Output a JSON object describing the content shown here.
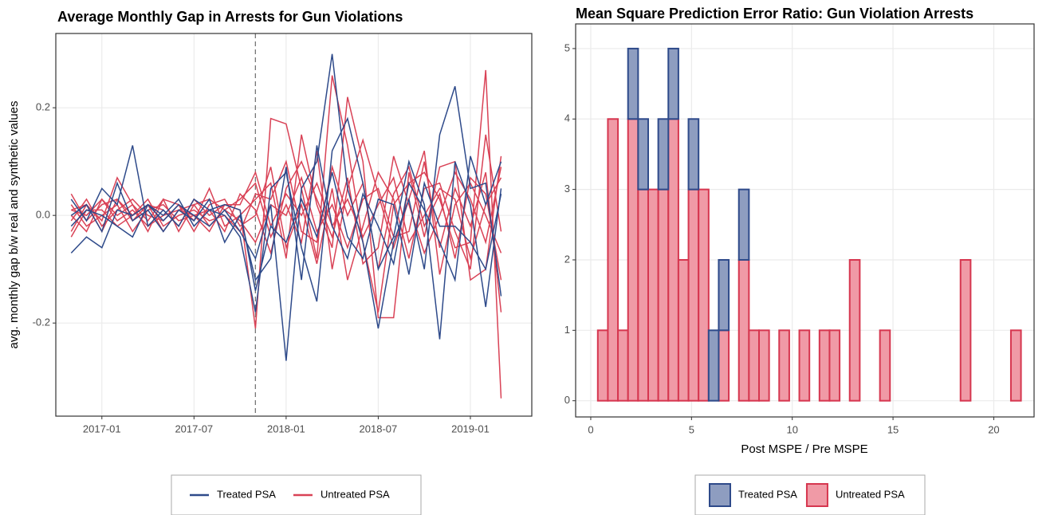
{
  "chart_data": [
    {
      "type": "line",
      "title": "Average Monthly Gap in Arrests for Gun Violations",
      "y_label": "avg. monthly gap b/w real and synthetic values",
      "x": [
        "2016-11",
        "2016-12",
        "2017-01",
        "2017-02",
        "2017-03",
        "2017-04",
        "2017-05",
        "2017-06",
        "2017-07",
        "2017-08",
        "2017-09",
        "2017-10",
        "2017-11",
        "2017-12",
        "2018-01",
        "2018-02",
        "2018-03",
        "2018-04",
        "2018-05",
        "2018-06",
        "2018-07",
        "2018-08",
        "2018-09",
        "2018-10",
        "2018-11",
        "2018-12",
        "2019-01",
        "2019-02",
        "2019-03"
      ],
      "xlim": [
        "2016-10",
        "2019-05"
      ],
      "xticks": [
        "2017-01",
        "2017-07",
        "2018-01",
        "2018-07",
        "2019-01"
      ],
      "ylim": [
        -0.373,
        0.338
      ],
      "yticks": [
        -0.2,
        {
          "value": 0,
          "label": "0.0"
        },
        0.2
      ],
      "vline": "2017-11",
      "grid": true,
      "legend": "bottom",
      "series": [
        {
          "name": "Treated PSA",
          "color": "#2e4a8a",
          "values": [
            [
              -0.07,
              -0.04,
              -0.06,
              0.01,
              0.0,
              0.02,
              -0.01,
              0.02,
              0.0,
              -0.02,
              0.01,
              -0.03,
              -0.08,
              0.02,
              -0.27,
              0.05,
              0.1,
              0.3,
              0.05,
              -0.05,
              -0.21,
              -0.05,
              0.03,
              -0.1,
              0.15,
              0.24,
              0.05,
              0.06,
              -0.15
            ],
            [
              0.03,
              -0.01,
              0.05,
              0.02,
              0.13,
              -0.02,
              0.01,
              -0.02,
              0.03,
              0.01,
              0.0,
              -0.04,
              -0.18,
              0.05,
              0.08,
              -0.06,
              -0.16,
              0.12,
              0.18,
              0.06,
              -0.1,
              -0.04,
              0.1,
              0.02,
              -0.23,
              0.1,
              0.02,
              -0.17,
              0.05
            ],
            [
              0.0,
              0.02,
              -0.03,
              0.06,
              -0.01,
              0.01,
              -0.03,
              0.01,
              -0.01,
              0.03,
              -0.05,
              0.0,
              -0.12,
              -0.08,
              0.09,
              -0.12,
              0.13,
              -0.02,
              -0.08,
              0.04,
              -0.02,
              -0.09,
              0.06,
              0.01,
              -0.05,
              -0.12,
              0.11,
              0.02,
              0.1
            ],
            [
              -0.02,
              0.01,
              0.0,
              -0.02,
              -0.04,
              0.02,
              0.0,
              0.03,
              -0.02,
              0.01,
              0.02,
              0.01,
              -0.14,
              -0.02,
              -0.05,
              0.03,
              -0.04,
              0.08,
              -0.04,
              -0.08,
              0.03,
              0.02,
              -0.11,
              0.06,
              -0.02,
              -0.02,
              -0.05,
              -0.1,
              0.04
            ]
          ]
        },
        {
          "name": "Untreated PSA",
          "color": "#d94256",
          "values": [
            [
              0.04,
              -0.01,
              0.02,
              0.03,
              -0.01,
              0.02,
              0.01,
              -0.02,
              0.03,
              0.0,
              0.02,
              0.01,
              -0.21,
              0.18,
              0.17,
              0.05,
              -0.08,
              0.26,
              0.13,
              -0.05,
              -0.18,
              0.02,
              0.06,
              0.08,
              0.03,
              -0.06,
              -0.05,
              0.27,
              -0.34
            ],
            [
              -0.03,
              0.02,
              -0.01,
              0.07,
              0.02,
              -0.03,
              0.03,
              0.02,
              -0.01,
              0.05,
              -0.02,
              0.0,
              0.03,
              0.06,
              -0.08,
              0.15,
              0.02,
              -0.06,
              0.22,
              0.1,
              -0.19,
              -0.19,
              0.08,
              -0.04,
              0.09,
              0.1,
              -0.12,
              -0.1,
              0.11
            ],
            [
              0.01,
              0.0,
              0.03,
              -0.01,
              0.01,
              -0.02,
              0.0,
              0.01,
              0.02,
              -0.02,
              0.01,
              0.03,
              0.06,
              -0.04,
              0.02,
              -0.05,
              0.12,
              -0.1,
              0.05,
              0.14,
              0.04,
              -0.06,
              0.03,
              0.12,
              -0.11,
              0.02,
              0.06,
              0.0,
              -0.07
            ],
            [
              -0.01,
              0.03,
              -0.02,
              0.01,
              0.03,
              0.0,
              -0.01,
              0.02,
              -0.03,
              0.02,
              0.03,
              -0.02,
              0.0,
              0.09,
              -0.06,
              0.02,
              -0.09,
              0.05,
              -0.12,
              -0.02,
              0.08,
              0.03,
              -0.08,
              0.05,
              0.06,
              -0.03,
              -0.1,
              0.15,
              -0.03
            ],
            [
              0.02,
              -0.02,
              0.0,
              0.02,
              -0.03,
              0.01,
              0.02,
              -0.01,
              0.0,
              0.01,
              -0.03,
              0.04,
              0.01,
              -0.07,
              0.05,
              0.1,
              0.03,
              -0.04,
              0.07,
              -0.09,
              -0.06,
              0.11,
              0.02,
              -0.07,
              0.0,
              0.08,
              0.03,
              -0.05,
              0.09
            ],
            [
              -0.04,
              0.01,
              0.01,
              -0.02,
              0.0,
              0.03,
              -0.02,
              0.0,
              0.01,
              -0.01,
              0.0,
              -0.03,
              0.04,
              0.03,
              0.1,
              -0.03,
              -0.05,
              0.09,
              0.0,
              0.06,
              -0.1,
              0.04,
              0.09,
              -0.02,
              0.04,
              -0.08,
              0.07,
              0.04,
              -0.12
            ],
            [
              0.0,
              -0.03,
              0.03,
              0.0,
              0.02,
              -0.01,
              0.03,
              -0.03,
              0.02,
              0.03,
              0.01,
              -0.01,
              -0.05,
              0.02,
              0.0,
              0.07,
              -0.03,
              0.02,
              -0.06,
              0.03,
              0.05,
              -0.04,
              -0.03,
              0.1,
              -0.06,
              0.05,
              -0.02,
              0.08,
              -0.18
            ],
            [
              0.01,
              0.02,
              -0.03,
              0.03,
              0.0,
              0.02,
              -0.03,
              0.01,
              0.0,
              -0.03,
              0.02,
              0.02,
              0.08,
              -0.02,
              0.04,
              0.0,
              0.06,
              -0.02,
              0.03,
              -0.04,
              0.02,
              0.07,
              -0.05,
              0.0,
              0.05,
              0.03,
              -0.08,
              0.02,
              0.07
            ]
          ]
        }
      ]
    },
    {
      "type": "histogram",
      "title": "Mean Square Prediction Error Ratio: Gun Violation Arrests",
      "x_label": "Post MSPE / Pre MSPE",
      "bins": [
        0.35,
        0.85,
        1.35,
        1.85,
        2.35,
        2.85,
        3.35,
        3.85,
        4.35,
        4.85,
        5.35,
        5.85,
        6.35,
        6.85,
        7.35,
        7.85,
        8.35,
        8.85,
        9.35,
        9.85,
        10.35,
        10.85,
        11.35,
        11.85,
        12.35,
        12.85,
        13.35,
        13.85,
        14.35,
        14.85,
        15.35,
        15.85,
        16.35,
        16.85,
        17.35,
        17.85,
        18.35,
        18.85,
        19.35,
        19.85,
        20.35,
        20.85,
        21.35
      ],
      "xlim": [
        -0.75,
        22
      ],
      "xticks": [
        0,
        5,
        10,
        15,
        20
      ],
      "ylim": [
        -0.23,
        5.35
      ],
      "yticks": [
        0,
        1,
        2,
        3,
        4,
        5
      ],
      "grid": true,
      "stacked": true,
      "legend": "bottom",
      "series": [
        {
          "name": "Treated PSA",
          "color": "#2e4a8a",
          "fill": "#8e9dc0",
          "values": [
            0,
            0,
            0,
            1,
            1,
            0,
            1,
            1,
            0,
            1,
            0,
            1,
            1,
            0,
            1,
            0,
            0,
            0,
            0,
            0,
            0,
            0,
            0,
            0,
            0,
            0,
            0,
            0,
            0,
            0,
            0,
            0,
            0,
            0,
            0,
            0,
            0,
            0,
            0,
            0,
            0,
            0
          ]
        },
        {
          "name": "Untreated PSA",
          "color": "#d6364f",
          "fill": "#f09aa6",
          "values": [
            1,
            4,
            1,
            4,
            3,
            3,
            3,
            4,
            2,
            3,
            3,
            0,
            1,
            0,
            2,
            1,
            1,
            0,
            1,
            0,
            1,
            0,
            1,
            1,
            0,
            2,
            0,
            0,
            1,
            0,
            0,
            0,
            0,
            0,
            0,
            0,
            2,
            0,
            0,
            0,
            0,
            1
          ]
        }
      ]
    }
  ]
}
